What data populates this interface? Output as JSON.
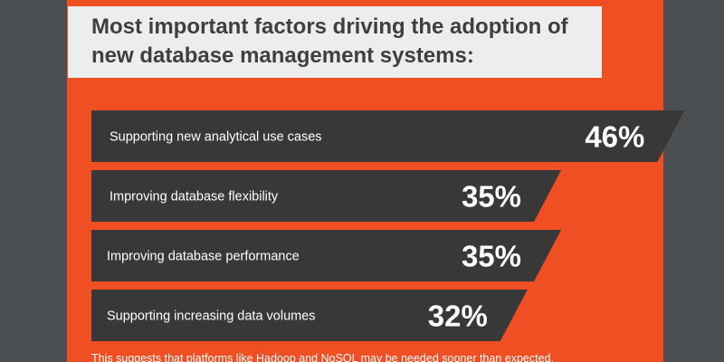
{
  "colors": {
    "background": "#4b4f52",
    "panel": "#f04e23",
    "title_box": "#eceeee",
    "title_text": "#3d3f41",
    "bar": "#383838",
    "bar_text": "#ffffff"
  },
  "chart_data": {
    "type": "bar",
    "orientation": "horizontal",
    "title": "Most important factors driving the adoption of new database management systems:",
    "categories": [
      "Supporting new analytical use cases",
      "Improving database flexibility",
      "Improving database performance",
      "Supporting increasing data volumes"
    ],
    "values": [
      46,
      35,
      35,
      32
    ],
    "value_labels": [
      "46%",
      "35%",
      "35%",
      "32%"
    ],
    "unit": "%",
    "grid": false,
    "legend": "none"
  },
  "footnote": "This suggests that platforms like Hadoop and NoSQL may be needed sooner than expected."
}
